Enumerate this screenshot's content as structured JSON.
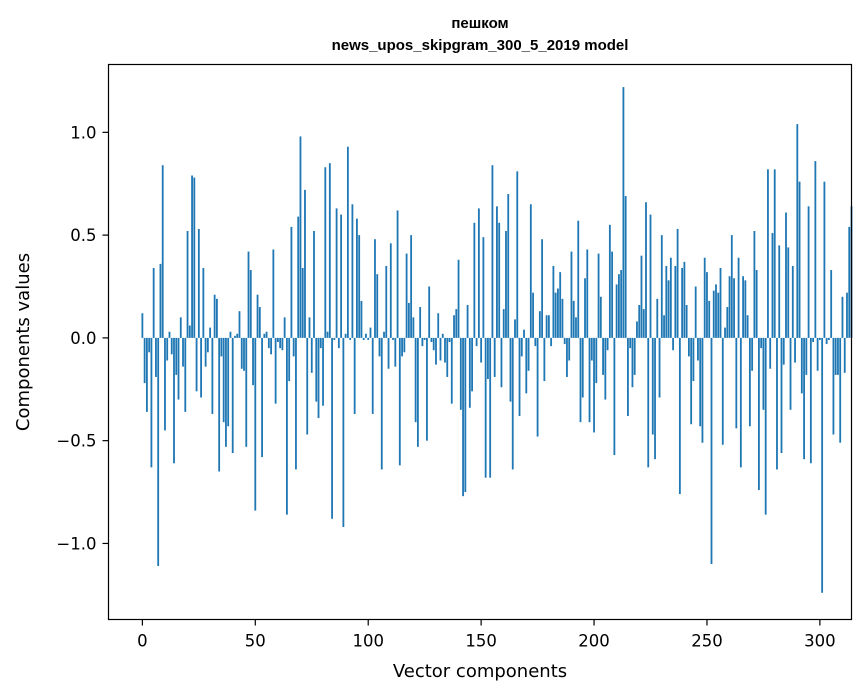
{
  "chart_data": {
    "type": "bar",
    "title_lines": [
      "пешком",
      "news_upos_skipgram_300_5_2019 model"
    ],
    "xlabel": "Vector components",
    "ylabel": "Components values",
    "xlim": [
      -15,
      314
    ],
    "ylim": [
      -1.37,
      1.33
    ],
    "xticks": [
      0,
      50,
      100,
      150,
      200,
      250,
      300
    ],
    "yticks": [
      -1.0,
      -0.5,
      0.0,
      0.5,
      1.0
    ],
    "ytick_labels": [
      "−1.0",
      "−0.5",
      "0.0",
      "0.5",
      "1.0"
    ],
    "bar_color": "#1f77b4",
    "series": [
      {
        "name": "пешком",
        "values": [
          0.12,
          -0.22,
          -0.36,
          -0.07,
          -0.63,
          0.34,
          -0.19,
          -1.11,
          0.36,
          0.84,
          -0.45,
          -0.11,
          0.03,
          -0.08,
          -0.61,
          -0.18,
          -0.3,
          0.1,
          -0.14,
          -0.36,
          0.52,
          0.06,
          0.79,
          0.78,
          -0.26,
          0.53,
          -0.29,
          0.34,
          -0.14,
          -0.07,
          0.05,
          -0.37,
          0.21,
          0.19,
          -0.65,
          -0.09,
          -0.41,
          -0.53,
          -0.43,
          0.03,
          -0.56,
          0.01,
          0.02,
          0.13,
          -0.15,
          -0.16,
          -0.53,
          0.42,
          0.33,
          -0.23,
          -0.84,
          0.21,
          0.15,
          -0.58,
          0.02,
          0.03,
          -0.05,
          -0.08,
          0.43,
          -0.32,
          -0.02,
          -0.05,
          -0.06,
          0.1,
          -0.86,
          -0.21,
          0.54,
          -0.09,
          -0.64,
          0.59,
          0.98,
          0.34,
          0.72,
          -0.47,
          0.1,
          -0.17,
          0.52,
          -0.31,
          -0.39,
          -0.05,
          -0.33,
          0.83,
          0.03,
          0.85,
          -0.88,
          -0.01,
          0.63,
          -0.05,
          0.6,
          -0.92,
          0.02,
          0.93,
          -0.01,
          0.65,
          -0.37,
          0.58,
          0.5,
          0.18,
          -0.01,
          0.02,
          -0.01,
          0.05,
          -0.37,
          0.48,
          0.31,
          -0.09,
          -0.64,
          0.03,
          0.35,
          -0.15,
          0.46,
          -0.01,
          -0.14,
          0.62,
          -0.62,
          -0.09,
          -0.07,
          0.41,
          0.17,
          0.5,
          0.1,
          -0.41,
          -0.53,
          0.15,
          -0.04,
          -0.01,
          -0.5,
          0.25,
          -0.02,
          -0.06,
          -0.13,
          0.12,
          -0.11,
          0.02,
          -0.12,
          -0.19,
          -0.02,
          -0.32,
          0.11,
          0.14,
          0.38,
          -0.35,
          -0.77,
          -0.75,
          0.16,
          -0.34,
          -0.26,
          0.56,
          -0.04,
          0.63,
          -0.12,
          0.49,
          -0.68,
          -0.2,
          -0.68,
          0.84,
          -0.19,
          0.64,
          0.56,
          -0.24,
          0.14,
          0.52,
          0.7,
          -0.31,
          -0.64,
          0.09,
          0.81,
          -0.38,
          -0.09,
          0.04,
          -0.27,
          -0.16,
          0.65,
          0.22,
          -0.04,
          -0.48,
          0.13,
          0.48,
          -0.21,
          0.11,
          0.11,
          -0.04,
          0.35,
          0.22,
          0.24,
          0.32,
          0.19,
          -0.03,
          -0.19,
          -0.11,
          0.42,
          0.18,
          0.1,
          0.57,
          -0.41,
          -0.29,
          0.29,
          0.43,
          -0.41,
          -0.11,
          -0.46,
          -0.22,
          0.41,
          0.2,
          -0.18,
          -0.3,
          -0.06,
          0.55,
          0.42,
          -0.57,
          0.26,
          0.31,
          0.33,
          1.22,
          0.69,
          -0.38,
          -0.05,
          -0.24,
          -0.18,
          0.08,
          0.16,
          0.4,
          0.14,
          0.66,
          -0.63,
          0.6,
          -0.47,
          -0.59,
          0.19,
          -0.29,
          0.5,
          0.11,
          0.35,
          0.28,
          0.39,
          -0.06,
          0.35,
          0.53,
          -0.76,
          0.34,
          0.37,
          0.16,
          -0.09,
          -0.42,
          -0.21,
          0.25,
          -0.11,
          -0.43,
          -0.51,
          0.39,
          0.32,
          0.18,
          -1.1,
          0.23,
          0.26,
          0.22,
          0.34,
          -0.52,
          0.05,
          0.15,
          0.3,
          0.5,
          0.29,
          -0.44,
          0.39,
          -0.63,
          0.3,
          0.28,
          0.11,
          -0.43,
          -0.16,
          0.52,
          0.33,
          -0.74,
          -0.05,
          -0.35,
          -0.86,
          0.82,
          -0.15,
          0.51,
          0.82,
          -0.64,
          0.45,
          -0.56,
          -0.13,
          0.61,
          0.44,
          -0.35,
          0.35,
          -0.12,
          1.04,
          0.76,
          -0.27,
          -0.59,
          -0.18,
          0.64,
          -0.61,
          -0.02,
          0.86,
          -0.16,
          -0.01,
          -1.24,
          0.76,
          -0.03,
          -0.01,
          0.33,
          -0.47,
          -0.18,
          -0.18,
          -0.51,
          0.2,
          -0.17,
          0.22,
          0.54,
          0.64
        ]
      }
    ]
  }
}
